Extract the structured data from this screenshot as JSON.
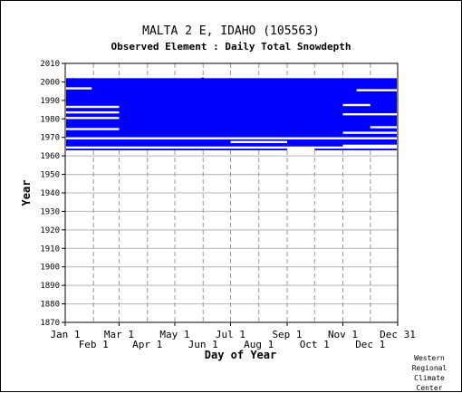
{
  "header": {
    "title": "MALTA 2 E, IDAHO   (105563)",
    "subtitle": "Observed Element : Daily Total Snowdepth"
  },
  "credit": [
    "Western",
    "Regional",
    "Climate",
    "Center"
  ],
  "chart_data": {
    "type": "scatter",
    "title": "MALTA 2 E, IDAHO   (105563)",
    "subtitle": "Observed Element : Daily Total Snowdepth",
    "xlabel": "Day of Year",
    "ylabel": "Year",
    "xlim": [
      1,
      365
    ],
    "ylim": [
      1870,
      2010
    ],
    "yticks": [
      1870,
      1880,
      1890,
      1900,
      1910,
      1920,
      1930,
      1940,
      1950,
      1960,
      1970,
      1980,
      1990,
      2000,
      2010
    ],
    "xticks_upper": [
      {
        "day": 1,
        "label": "Jan 1"
      },
      {
        "day": 60,
        "label": "Mar 1"
      },
      {
        "day": 121,
        "label": "May 1"
      },
      {
        "day": 182,
        "label": "Jul 1"
      },
      {
        "day": 244,
        "label": "Sep 1"
      },
      {
        "day": 305,
        "label": "Nov 1"
      },
      {
        "day": 365,
        "label": "Dec 31"
      }
    ],
    "xticks_lower": [
      {
        "day": 32,
        "label": "Feb 1"
      },
      {
        "day": 91,
        "label": "Apr 1"
      },
      {
        "day": 152,
        "label": "Jun 1"
      },
      {
        "day": 213,
        "label": "Aug 1"
      },
      {
        "day": 274,
        "label": "Oct 1"
      },
      {
        "day": 335,
        "label": "Dec 1"
      }
    ],
    "grid": true,
    "series_color": "#0000ff",
    "observation_period": {
      "first_year": 1963,
      "last_year": 2001
    },
    "missing_year_gaps": [
      {
        "year": 1964,
        "day_start": 1,
        "day_end": 365
      },
      {
        "year": 1969,
        "day_start": 1,
        "day_end": 365
      },
      {
        "year": 1974,
        "day_start": 1,
        "day_end": 60
      },
      {
        "year": 1980,
        "day_start": 1,
        "day_end": 60
      },
      {
        "year": 1983,
        "day_start": 1,
        "day_end": 60
      },
      {
        "year": 1986,
        "day_start": 1,
        "day_end": 60
      },
      {
        "year": 1996,
        "day_start": 1,
        "day_end": 30
      },
      {
        "year": 1967,
        "day_start": 182,
        "day_end": 244
      },
      {
        "year": 1963,
        "day_start": 244,
        "day_end": 274
      },
      {
        "year": 1965,
        "day_start": 305,
        "day_end": 365
      },
      {
        "year": 1972,
        "day_start": 305,
        "day_end": 365
      },
      {
        "year": 1975,
        "day_start": 335,
        "day_end": 365
      },
      {
        "year": 1982,
        "day_start": 305,
        "day_end": 365
      },
      {
        "year": 1987,
        "day_start": 305,
        "day_end": 335
      },
      {
        "year": 1995,
        "day_start": 320,
        "day_end": 365
      }
    ]
  }
}
